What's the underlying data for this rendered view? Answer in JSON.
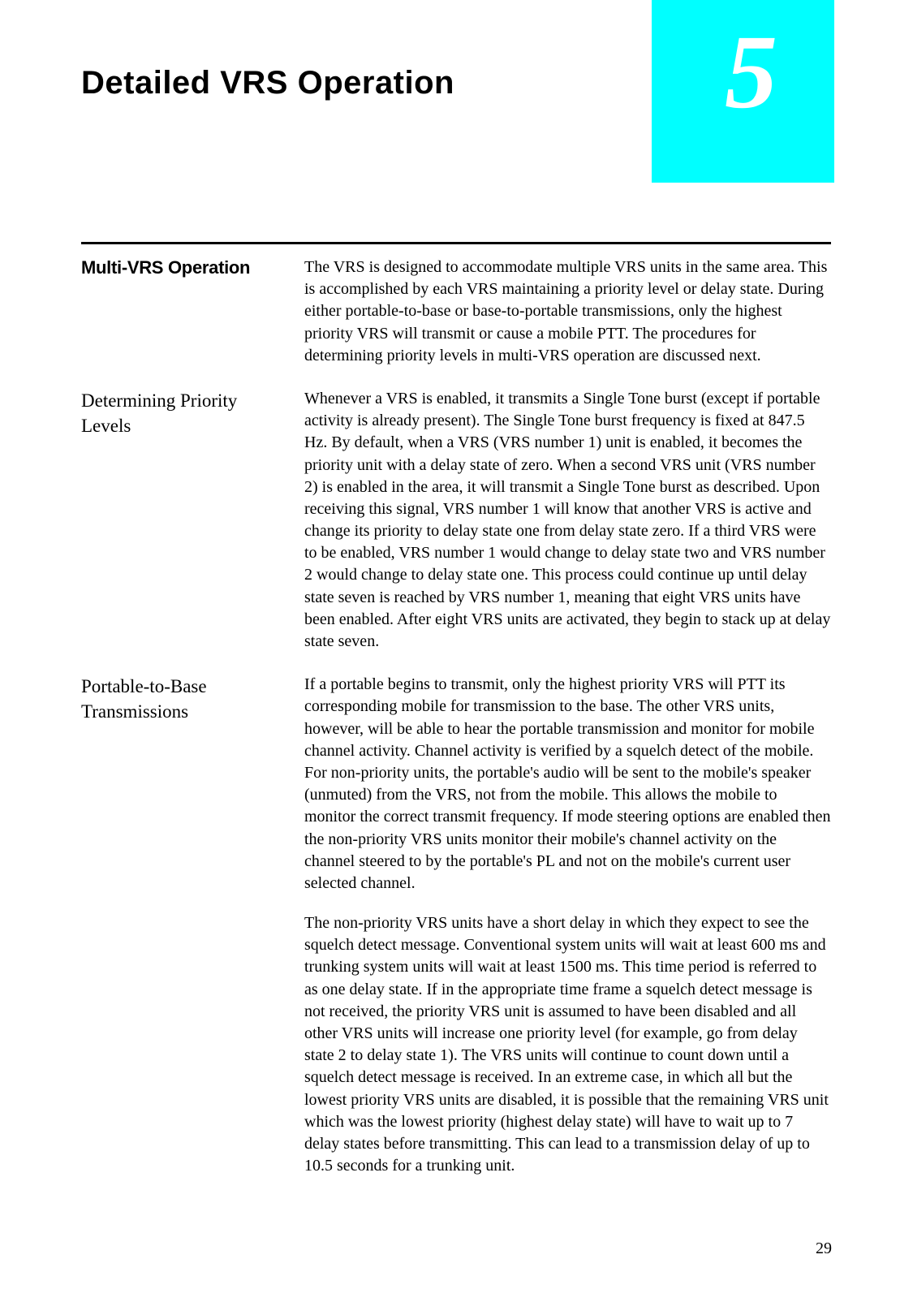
{
  "chapter": {
    "number": "5",
    "title": "Detailed VRS Operation",
    "tab_color": "#00ffff",
    "number_color": "#ffffff"
  },
  "page_number": "29",
  "sections": [
    {
      "heading": "Multi-VRS Operation",
      "heading_style": "bold",
      "paragraphs": [
        "The VRS is designed to accommodate multiple VRS units in the same area. This is accomplished by each VRS maintaining a priority level or delay state. During either portable-to-base or base-to-portable transmissions, only the highest priority VRS will transmit or cause a mobile PTT. The procedures for determining priority levels in multi-VRS operation are discussed next."
      ]
    },
    {
      "heading": "Determining Priority Levels",
      "heading_style": "normal",
      "paragraphs": [
        "Whenever a VRS is enabled, it transmits a Single Tone burst (except if portable activity is already present). The Single Tone burst frequency is fixed at 847.5 Hz. By default, when a VRS (VRS number 1) unit is enabled, it becomes the priority unit with a delay state of zero. When a second VRS unit (VRS number 2) is enabled in the area, it will transmit a Single Tone burst as described. Upon receiving this signal, VRS number 1 will know that another VRS is active and change its priority to delay state one from delay state zero. If a third VRS were to be enabled, VRS number 1 would change to delay state two and VRS number 2 would change to delay state one. This process could continue up until delay state seven is reached by VRS number 1, meaning that eight VRS units have been enabled. After eight VRS units are activated, they begin to stack up at delay state seven."
      ]
    },
    {
      "heading": "Portable-to-Base Transmissions",
      "heading_style": "normal",
      "paragraphs": [
        "If a portable begins to transmit, only the highest priority VRS will PTT its corresponding mobile for transmission to the base. The other VRS units, however, will be able to hear the portable transmission and monitor for mobile channel activity. Channel activity is verified by a squelch detect of the mobile. For non-priority units, the portable's audio will be sent to the mobile's speaker (unmuted) from the VRS, not from the mobile. This allows the mobile to monitor the correct transmit frequency. If mode steering options are enabled then the non-priority VRS units monitor their mobile's channel activity on the channel steered to by the portable's PL and not on the mobile's current user selected channel.",
        "The non-priority VRS units have a short delay in which they expect to see the squelch detect message. Conventional system units will wait at least 600 ms and trunking system units will wait at least 1500 ms. This time period is referred to as one delay state. If in the appropriate time frame a squelch detect message is not received, the priority VRS unit is assumed to have been disabled and all other VRS units will increase one priority level (for example, go from delay state 2 to delay state 1). The VRS units will continue to count down until a squelch detect message is received. In an extreme case, in which all but the lowest priority VRS units are disabled, it is possible that the remaining VRS unit which was the lowest priority (highest delay state) will have to wait up to 7 delay states before transmitting. This can lead to a transmission delay of up to 10.5 seconds for a trunking unit."
      ]
    }
  ]
}
